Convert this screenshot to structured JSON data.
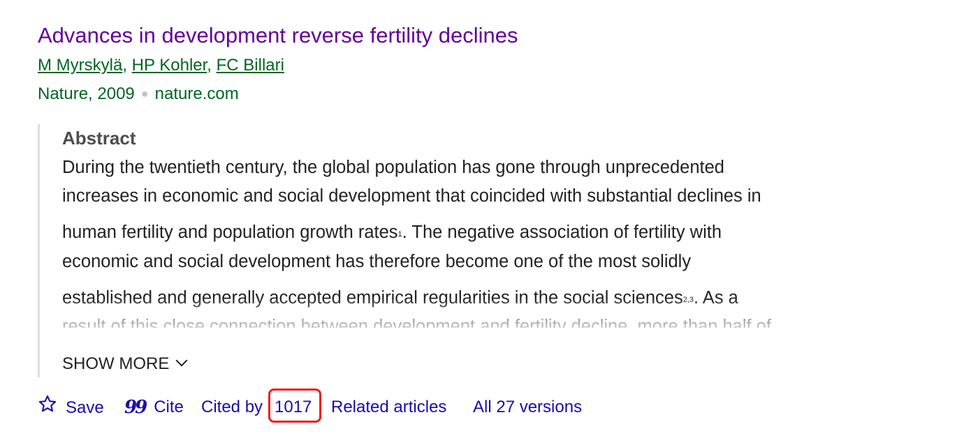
{
  "result": {
    "title": "Advances in development reverse fertility declines",
    "authors": [
      "M Myrskylä",
      "HP Kohler",
      "FC Billari"
    ],
    "source": "Nature, 2009",
    "domain": "nature.com"
  },
  "abstract": {
    "heading": "Abstract",
    "lines": [
      "During the twentieth century, the global population has gone through unprecedented",
      "increases in economic and social development that coincided with substantial declines in",
      "human fertility and population growth rates",
      ". The negative association of fertility with",
      "economic and social development has therefore become one of the most solidly",
      "established and generally accepted empirical regularities in the social sciences",
      ". As a",
      "result of this close connection between development and fertility decline, more than half of"
    ],
    "ref1": "1",
    "ref2": "2,3",
    "show_more": "SHOW MORE"
  },
  "actions": {
    "save": "Save",
    "cite": "Cite",
    "cited_by_prefix": "Cited by ",
    "cited_by_count": "1017",
    "related": "Related articles",
    "versions": "All 27 versions"
  },
  "icons": {
    "save": "star-icon",
    "cite": "quote-icon",
    "show_more": "chevron-down-icon"
  },
  "colors": {
    "title": "#660099",
    "meta": "#006621",
    "link": "#1a0dab",
    "highlight": "#f21c1c"
  }
}
